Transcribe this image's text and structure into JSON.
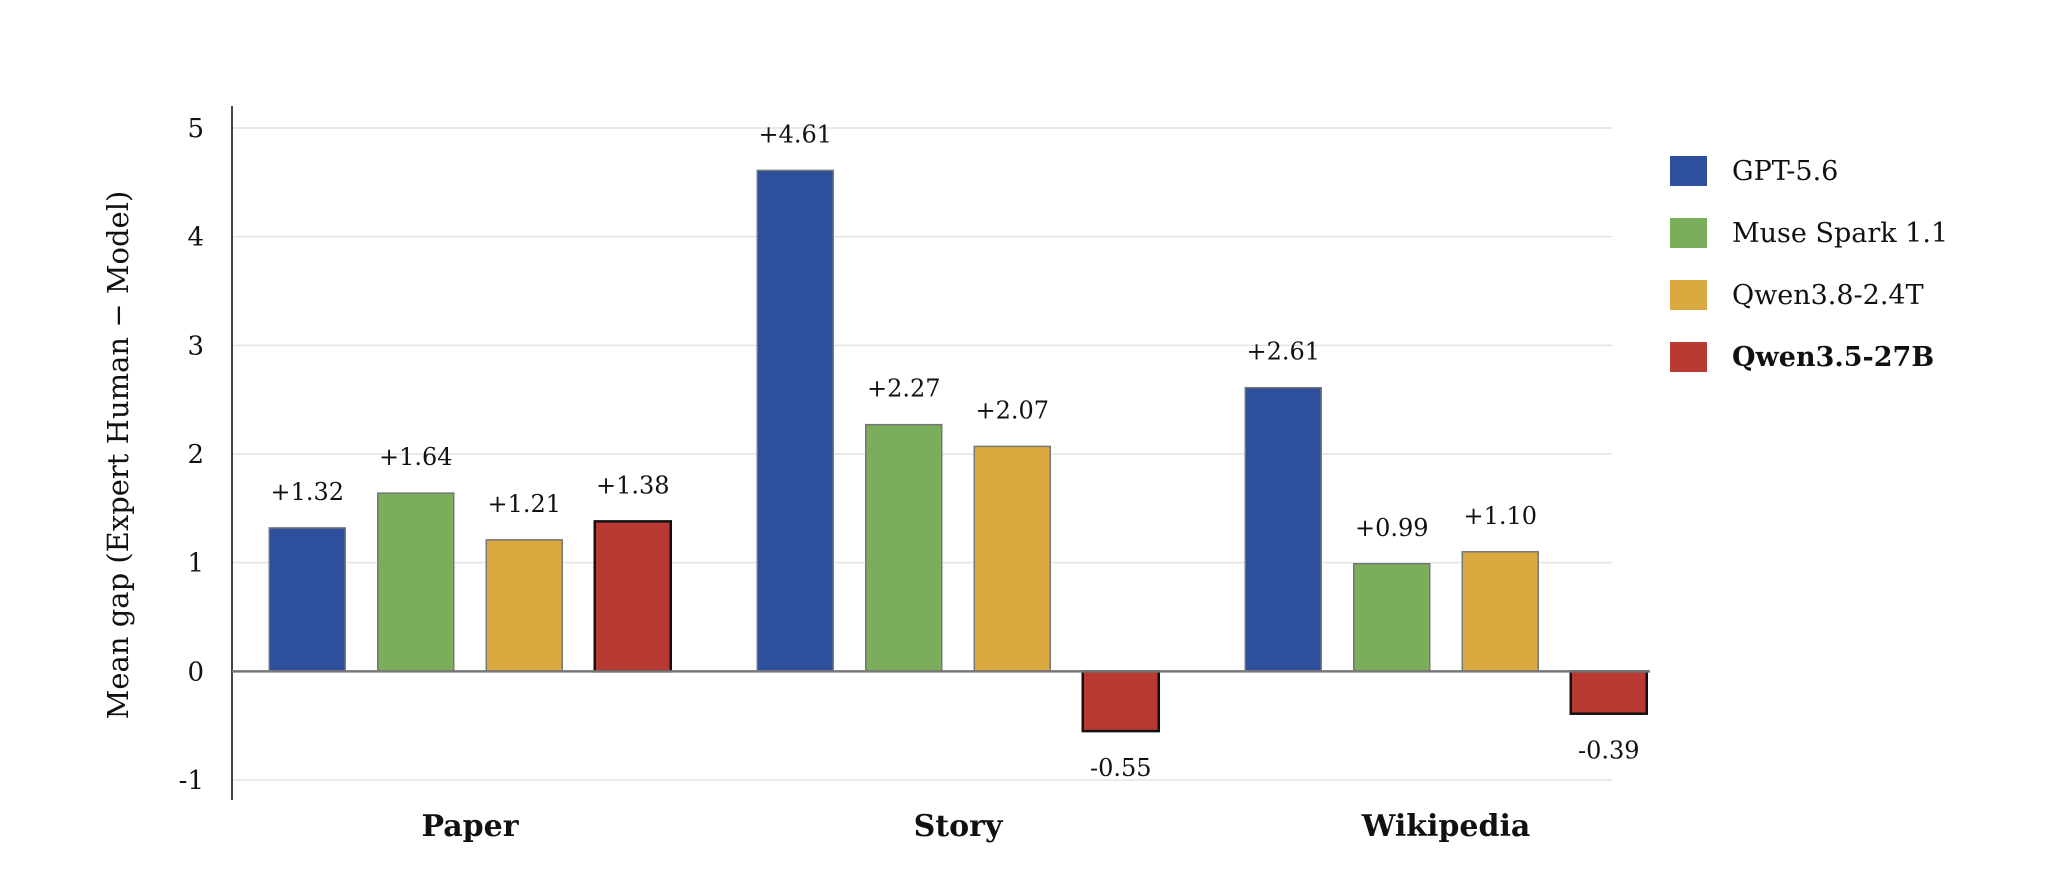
{
  "chart_data": {
    "type": "bar",
    "title": "",
    "xlabel": "",
    "ylabel": "Mean gap (Expert Human − Model)",
    "ylim": [
      -1,
      5
    ],
    "yticks": [
      "5",
      "4",
      "3",
      "2",
      "1",
      "0",
      "-1"
    ],
    "ytick_values": [
      5,
      4,
      3,
      2,
      1,
      0,
      -1
    ],
    "categories": [
      "Paper",
      "Story",
      "Wikipedia"
    ],
    "grid": true,
    "legend_position": "right",
    "series": [
      {
        "name": "GPT-5.6",
        "color": "#2E4F9B",
        "values": [
          1.32,
          4.61,
          2.61
        ],
        "labels": [
          "+1.32",
          "+4.61",
          "+2.61"
        ]
      },
      {
        "name": "Muse Spark 1.1",
        "color": "#7BAE5A",
        "values": [
          1.64,
          2.27,
          0.99
        ],
        "labels": [
          "+1.64",
          "+2.27",
          "+0.99"
        ]
      },
      {
        "name": "Qwen3.8-2.4T",
        "color": "#D9A83F",
        "values": [
          1.21,
          2.07,
          1.1
        ],
        "labels": [
          "+1.21",
          "+2.07",
          "+1.10"
        ]
      },
      {
        "name": "Qwen3.5-27B",
        "color": "#B83A33",
        "values": [
          1.38,
          -0.55,
          -0.39
        ],
        "labels": [
          "+1.38",
          "-0.55",
          "-0.39"
        ],
        "highlight": true
      }
    ]
  }
}
